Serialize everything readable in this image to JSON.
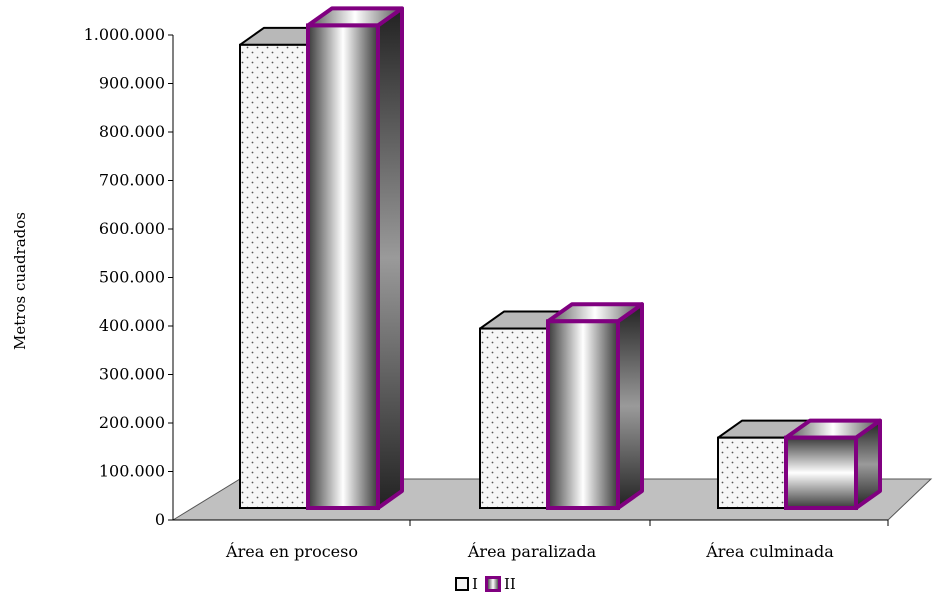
{
  "chart_data": {
    "type": "bar",
    "title": "",
    "xlabel": "",
    "ylabel": "Metros cuadrados",
    "categories": [
      "Área en proceso",
      "Área paralizada",
      "Área culminada"
    ],
    "series": [
      {
        "name": "I",
        "values": [
          955000,
          370000,
          145000
        ]
      },
      {
        "name": "II",
        "values": [
          995000,
          385000,
          145000
        ]
      }
    ],
    "ylim": [
      0,
      1000000
    ],
    "yticks": [
      "0",
      "100.000",
      "200.000",
      "300.000",
      "400.000",
      "500.000",
      "600.000",
      "700.000",
      "800.000",
      "900.000",
      "1.000.000"
    ],
    "legend_position": "bottom",
    "colors": {
      "series_I_face": "#f4f4f4",
      "series_I_top": "#b8b8b8",
      "series_I_side": "#9a9a9a",
      "series_II_border": "#800080",
      "floor": "#c0c0c0"
    }
  }
}
